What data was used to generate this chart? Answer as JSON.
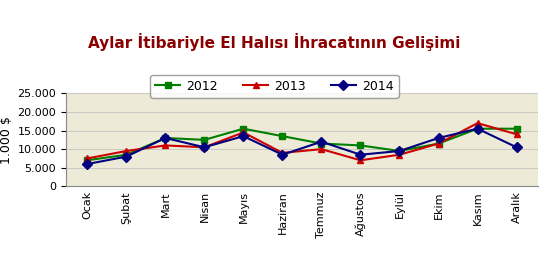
{
  "title": "Aylar İtibariyle El Halısı İhracatının Gelişimi",
  "ylabel": "1.000 $",
  "categories": [
    "Ocak",
    "Şubat",
    "Mart",
    "Nisan",
    "Mayıs",
    "Haziran",
    "Temmuz",
    "Ağustos",
    "Eylül",
    "Ekim",
    "Kasım",
    "Aralık"
  ],
  "series": [
    {
      "label": "2012",
      "color": "#008000",
      "marker": "s",
      "values": [
        7000,
        8500,
        13000,
        12500,
        15500,
        13500,
        11500,
        11000,
        9500,
        11500,
        15500,
        15500
      ]
    },
    {
      "label": "2013",
      "color": "#CC0000",
      "marker": "^",
      "values": [
        7500,
        9500,
        11000,
        10500,
        14500,
        9000,
        10000,
        7000,
        8500,
        11500,
        17000,
        14000
      ]
    },
    {
      "label": "2014",
      "color": "#000080",
      "marker": "D",
      "values": [
        6000,
        8000,
        13000,
        10500,
        13500,
        8500,
        12000,
        8500,
        9500,
        13000,
        15500,
        10500
      ]
    }
  ],
  "ylim": [
    0,
    25000
  ],
  "yticks": [
    0,
    5000,
    10000,
    15000,
    20000,
    25000
  ],
  "plot_bg_color": "#eeead8",
  "fig_bg_color": "#ffffff",
  "title_color": "#8B0000",
  "title_fontsize": 11,
  "legend_fontsize": 9,
  "tick_fontsize": 8,
  "ylabel_fontsize": 9,
  "linewidth": 1.5,
  "markersize": 5
}
